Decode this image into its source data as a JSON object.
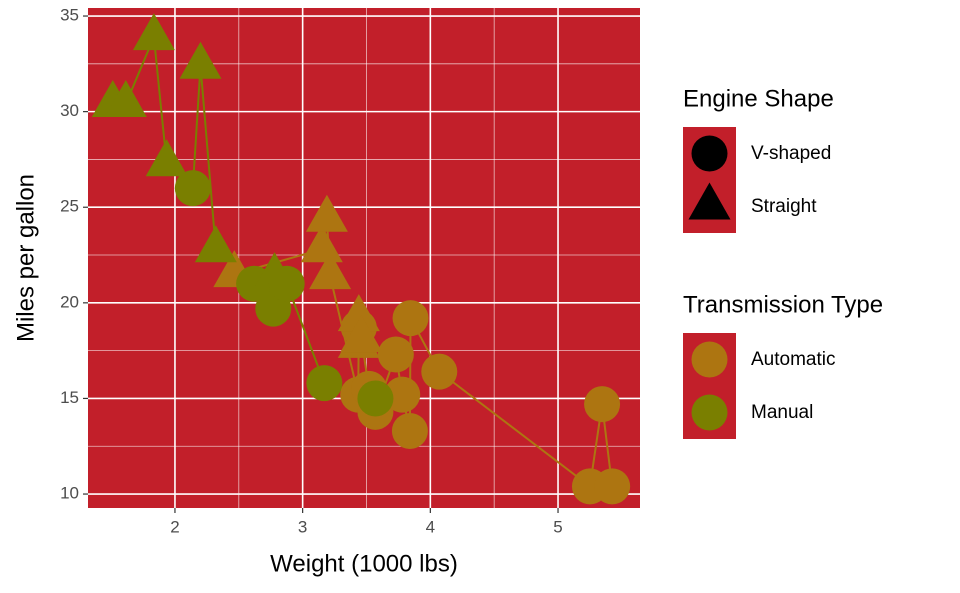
{
  "chart_data": {
    "type": "scatter",
    "x_label": "Weight (1000 lbs)",
    "y_label": "Miles per gallon",
    "xlim": [
      1.319,
      5.642
    ],
    "ylim": [
      9.27,
      35.42
    ],
    "xticks": [
      2,
      3,
      4,
      5
    ],
    "yticks": [
      10,
      15,
      20,
      25,
      30,
      35
    ],
    "grid": true,
    "panel_color": "#c21f2a",
    "shape_legend": {
      "title": "Engine Shape",
      "items": [
        "V-shaped",
        "Straight"
      ]
    },
    "color_legend_title": "Transmission Type",
    "series": [
      {
        "name": "Automatic",
        "color": "#ad7511",
        "x": [
          2.465,
          3.15,
          3.19,
          3.215,
          3.435,
          3.44,
          3.44,
          3.44,
          3.46,
          3.52,
          3.57,
          3.73,
          3.78,
          3.84,
          3.845,
          4.07,
          5.25,
          5.345,
          5.424
        ],
        "values": [
          21.5,
          22.8,
          24.4,
          21.4,
          15.2,
          18.7,
          19.2,
          17.8,
          18.1,
          15.5,
          14.3,
          17.3,
          15.2,
          13.3,
          19.2,
          16.4,
          10.4,
          14.7,
          10.4
        ],
        "shape": [
          1,
          1,
          1,
          1,
          0,
          0,
          1,
          1,
          1,
          0,
          0,
          0,
          0,
          0,
          0,
          0,
          0,
          0,
          0
        ]
      },
      {
        "name": "Manual",
        "color": "#7a7f00",
        "x": [
          1.513,
          1.615,
          1.835,
          1.935,
          2.14,
          2.2,
          2.32,
          2.62,
          2.77,
          2.78,
          2.875,
          3.17,
          3.57
        ],
        "values": [
          30.4,
          30.4,
          33.9,
          27.3,
          26.0,
          32.4,
          22.8,
          21.0,
          19.7,
          21.4,
          21.0,
          15.8,
          15.0
        ],
        "shape": [
          1,
          1,
          1,
          1,
          0,
          1,
          1,
          0,
          0,
          1,
          0,
          0,
          0
        ]
      }
    ]
  }
}
